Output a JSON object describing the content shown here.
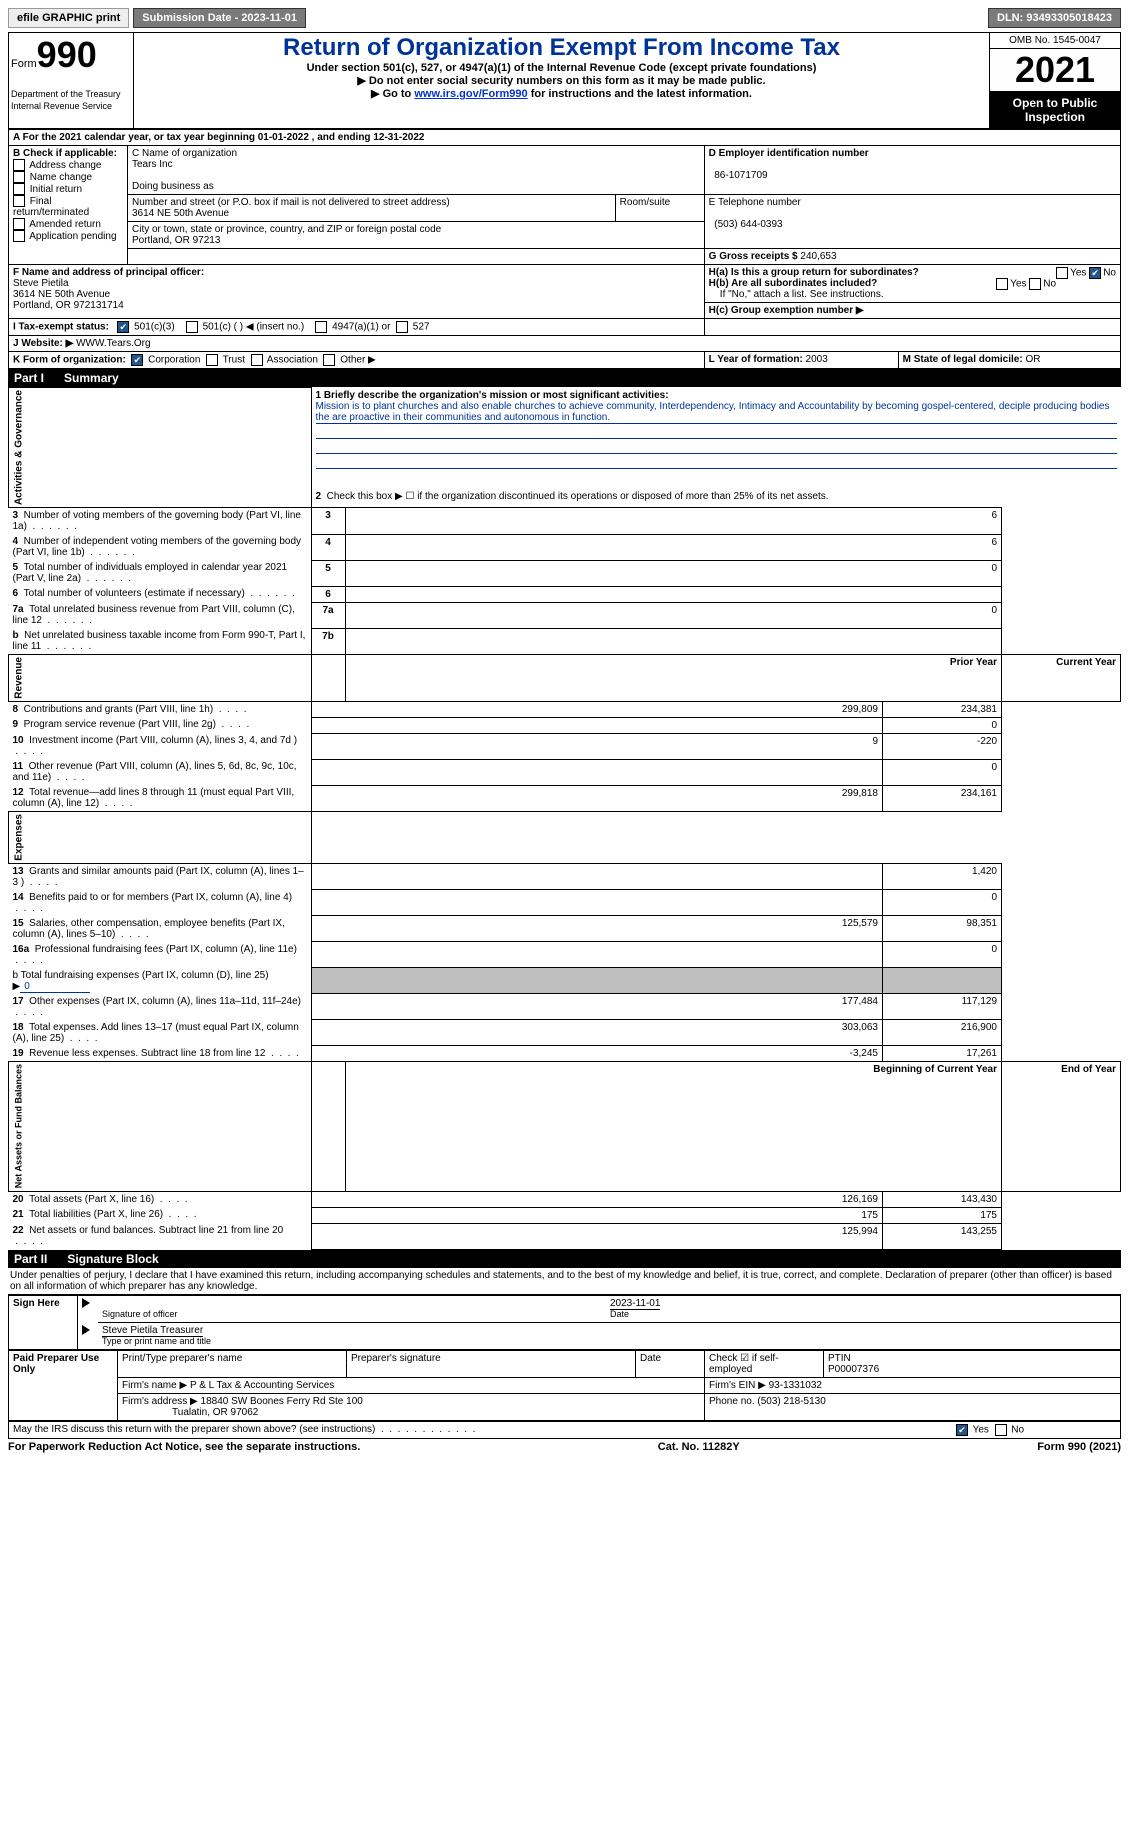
{
  "topbar": {
    "efile_label": "efile GRAPHIC print",
    "submission_label": "Submission Date - 2023-11-01",
    "dln_label": "DLN: 93493305018423"
  },
  "header": {
    "form_word": "Form",
    "form_num": "990",
    "dept": "Department of the Treasury",
    "irs": "Internal Revenue Service",
    "title": "Return of Organization Exempt From Income Tax",
    "subtitle": "Under section 501(c), 527, or 4947(a)(1) of the Internal Revenue Code (except private foundations)",
    "note1": "▶ Do not enter social security numbers on this form as it may be made public.",
    "note2_pre": "▶ Go to ",
    "note2_link": "www.irs.gov/Form990",
    "note2_post": " for instructions and the latest information.",
    "omb": "OMB No. 1545-0047",
    "year": "2021",
    "open": "Open to Public Inspection"
  },
  "boxA": {
    "line": "A For the 2021 calendar year, or tax year beginning 01-01-2022   , and ending 12-31-2022"
  },
  "boxB": {
    "title": "B Check if applicable:",
    "items": [
      "Address change",
      "Name change",
      "Initial return",
      "Final return/terminated",
      "Amended return",
      "Application pending"
    ]
  },
  "boxC": {
    "name_label": "C Name of organization",
    "name": "Tears Inc",
    "dba_label": "Doing business as",
    "addr_label": "Number and street (or P.O. box if mail is not delivered to street address)",
    "room_label": "Room/suite",
    "addr": "3614 NE 50th Avenue",
    "city_label": "City or town, state or province, country, and ZIP or foreign postal code",
    "city": "Portland, OR  97213"
  },
  "boxD": {
    "label": "D Employer identification number",
    "val": "86-1071709"
  },
  "boxE": {
    "label": "E Telephone number",
    "val": "(503) 644-0393"
  },
  "boxG": {
    "label": "G Gross receipts $",
    "val": "240,653"
  },
  "boxF": {
    "label": "F  Name and address of principal officer:",
    "name": "Steve Pietila",
    "addr1": "3614 NE 50th Avenue",
    "addr2": "Portland, OR  972131714"
  },
  "boxH": {
    "ha": "H(a)  Is this a group return for subordinates?",
    "hb": "H(b)  Are all subordinates included?",
    "hb_note": "If \"No,\" attach a list. See instructions.",
    "hc": "H(c)  Group exemption number ▶",
    "yes": "Yes",
    "no": "No"
  },
  "boxI": {
    "label": "I  Tax-exempt status:",
    "c3": "501(c)(3)",
    "c": "501(c) (  ) ◀ (insert no.)",
    "a1": "4947(a)(1) or",
    "527": "527"
  },
  "boxJ": {
    "label": "J  Website: ▶",
    "val": " WWW.Tears.Org"
  },
  "boxK": {
    "label": "K Form of organization:",
    "corp": "Corporation",
    "trust": "Trust",
    "assoc": "Association",
    "other": "Other ▶"
  },
  "boxL": {
    "label": "L Year of formation:",
    "val": "2003"
  },
  "boxM": {
    "label": "M State of legal domicile:",
    "val": "OR"
  },
  "part1": {
    "num": "Part I",
    "title": "Summary"
  },
  "sections": {
    "ag": "Activities & Governance",
    "rev": "Revenue",
    "exp": "Expenses",
    "net": "Net Assets or Fund Balances"
  },
  "summary": {
    "l1_label": "1  Briefly describe the organization's mission or most significant activities:",
    "mission": "Mission is to plant churches and also enable churches to achieve community, Interdependency, Intimacy and Accountability by becoming gospel-centered, deciple producing bodies the are proactive in their communities and autonomous in function.",
    "l2": "Check this box ▶ ☐  if the organization discontinued its operations or disposed of more than 25% of its net assets.",
    "rows_ag": [
      {
        "n": "3",
        "label": "Number of voting members of the governing body (Part VI, line 1a)",
        "box": "3",
        "val": "6"
      },
      {
        "n": "4",
        "label": "Number of independent voting members of the governing body (Part VI, line 1b)",
        "box": "4",
        "val": "6"
      },
      {
        "n": "5",
        "label": "Total number of individuals employed in calendar year 2021 (Part V, line 2a)",
        "box": "5",
        "val": "0"
      },
      {
        "n": "6",
        "label": "Total number of volunteers (estimate if necessary)",
        "box": "6",
        "val": ""
      },
      {
        "n": "7a",
        "label": "Total unrelated business revenue from Part VIII, column (C), line 12",
        "box": "7a",
        "val": "0"
      },
      {
        "n": "b",
        "label": "Net unrelated business taxable income from Form 990-T, Part I, line 11",
        "box": "7b",
        "val": ""
      }
    ],
    "col_prior": "Prior Year",
    "col_curr": "Current Year",
    "rows_rev": [
      {
        "n": "8",
        "label": "Contributions and grants (Part VIII, line 1h)",
        "p": "299,809",
        "c": "234,381"
      },
      {
        "n": "9",
        "label": "Program service revenue (Part VIII, line 2g)",
        "p": "",
        "c": "0"
      },
      {
        "n": "10",
        "label": "Investment income (Part VIII, column (A), lines 3, 4, and 7d )",
        "p": "9",
        "c": "-220"
      },
      {
        "n": "11",
        "label": "Other revenue (Part VIII, column (A), lines 5, 6d, 8c, 9c, 10c, and 11e)",
        "p": "",
        "c": "0"
      },
      {
        "n": "12",
        "label": "Total revenue—add lines 8 through 11 (must equal Part VIII, column (A), line 12)",
        "p": "299,818",
        "c": "234,161"
      }
    ],
    "rows_exp": [
      {
        "n": "13",
        "label": "Grants and similar amounts paid (Part IX, column (A), lines 1–3 )",
        "p": "",
        "c": "1,420"
      },
      {
        "n": "14",
        "label": "Benefits paid to or for members (Part IX, column (A), line 4)",
        "p": "",
        "c": "0"
      },
      {
        "n": "15",
        "label": "Salaries, other compensation, employee benefits (Part IX, column (A), lines 5–10)",
        "p": "125,579",
        "c": "98,351"
      },
      {
        "n": "16a",
        "label": "Professional fundraising fees (Part IX, column (A), line 11e)",
        "p": "",
        "c": "0"
      }
    ],
    "l16b_pre": "b  Total fundraising expenses (Part IX, column (D), line 25) ▶",
    "l16b_val": "0",
    "rows_exp2": [
      {
        "n": "17",
        "label": "Other expenses (Part IX, column (A), lines 11a–11d, 11f–24e)",
        "p": "177,484",
        "c": "117,129"
      },
      {
        "n": "18",
        "label": "Total expenses. Add lines 13–17 (must equal Part IX, column (A), line 25)",
        "p": "303,063",
        "c": "216,900"
      },
      {
        "n": "19",
        "label": "Revenue less expenses. Subtract line 18 from line 12",
        "p": "-3,245",
        "c": "17,261"
      }
    ],
    "col_beg": "Beginning of Current Year",
    "col_end": "End of Year",
    "rows_net": [
      {
        "n": "20",
        "label": "Total assets (Part X, line 16)",
        "p": "126,169",
        "c": "143,430"
      },
      {
        "n": "21",
        "label": "Total liabilities (Part X, line 26)",
        "p": "175",
        "c": "175"
      },
      {
        "n": "22",
        "label": "Net assets or fund balances. Subtract line 21 from line 20",
        "p": "125,994",
        "c": "143,255"
      }
    ]
  },
  "part2": {
    "num": "Part II",
    "title": "Signature Block"
  },
  "declaration": "Under penalties of perjury, I declare that I have examined this return, including accompanying schedules and statements, and to the best of my knowledge and belief, it is true, correct, and complete. Declaration of preparer (other than officer) is based on all information of which preparer has any knowledge.",
  "sign": {
    "here": "Sign Here",
    "sig_label": "Signature of officer",
    "date_label": "Date",
    "date_val": "2023-11-01",
    "name": "Steve Pietila  Treasurer",
    "name_label": "Type or print name and title"
  },
  "paid": {
    "title": "Paid Preparer Use Only",
    "r1": {
      "c1": "Print/Type preparer's name",
      "c2": "Preparer's signature",
      "c3": "Date",
      "c4a": "Check ☑ if self-employed",
      "c5a": "PTIN",
      "c5b": "P00007376"
    },
    "r2": {
      "label": "Firm's name    ▶",
      "val": "P & L Tax & Accounting Services",
      "ein_label": "Firm's EIN ▶",
      "ein": "93-1331032"
    },
    "r3": {
      "label": "Firm's address ▶",
      "val1": "18840 SW Boones Ferry Rd Ste 100",
      "val2": "Tualatin, OR  97062",
      "ph_label": "Phone no.",
      "ph": "(503) 218-5130"
    }
  },
  "discuss": {
    "label": "May the IRS discuss this return with the preparer shown above? (see instructions)",
    "yes": "Yes",
    "no": "No"
  },
  "footer": {
    "l": "For Paperwork Reduction Act Notice, see the separate instructions.",
    "c": "Cat. No. 11282Y",
    "r": "Form 990 (2021)"
  }
}
